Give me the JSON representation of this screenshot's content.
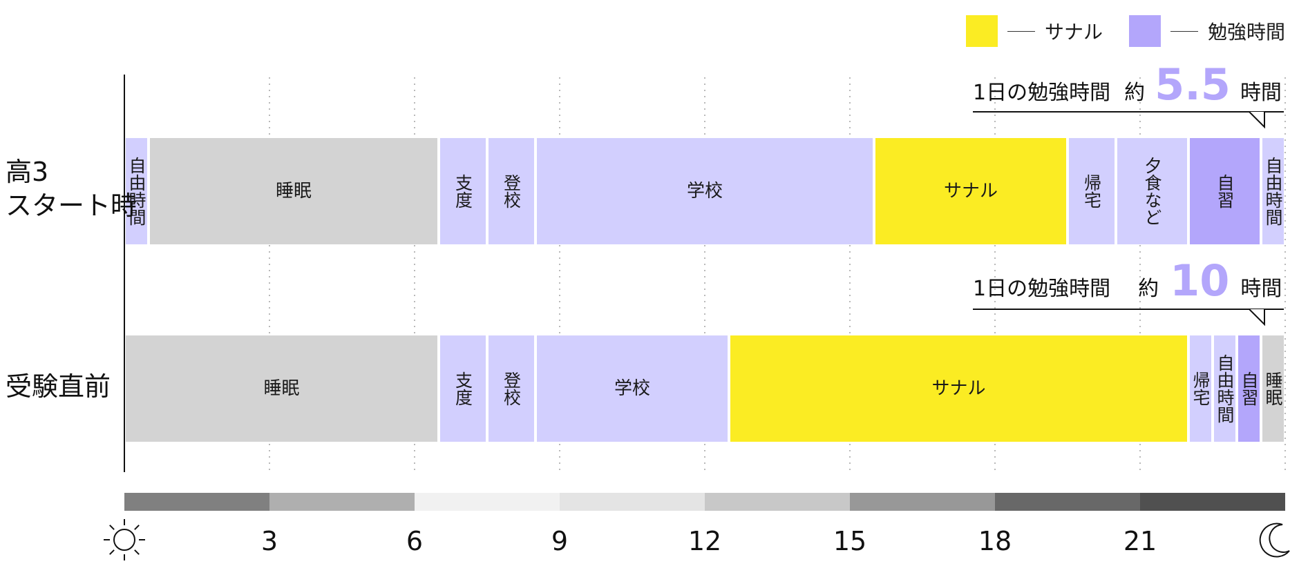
{
  "legend": [
    {
      "label": "サナル",
      "color": "#fbec23"
    },
    {
      "label": "勉強時間",
      "color": "#b3a6fb"
    }
  ],
  "colors": {
    "sleep": "#d3d3d3",
    "activity": "#d2cffe",
    "study": "#b3a6fb",
    "sanaru": "#fbec23"
  },
  "callouts": [
    {
      "prefix": "1日の勉強時間",
      "approx": "約",
      "value": "5.5",
      "suffix": "時間"
    },
    {
      "prefix": "1日の勉強時間",
      "approx": "約",
      "value": "10",
      "suffix": "時間"
    }
  ],
  "chart_data": {
    "type": "bar",
    "orientation": "horizontal-stacked-timeline",
    "x_range": [
      0,
      24
    ],
    "x_ticks": [
      3,
      6,
      9,
      12,
      15,
      18,
      21
    ],
    "x_tick_labels": [
      "3",
      "6",
      "9",
      "12",
      "15",
      "18",
      "21"
    ],
    "x_start_icon": "sun-icon",
    "x_end_icon": "moon-icon",
    "grid": true,
    "legend_position": "top-right",
    "time_band": [
      {
        "start": 0,
        "end": 3,
        "color": "#808080"
      },
      {
        "start": 3,
        "end": 6,
        "color": "#afafaf"
      },
      {
        "start": 6,
        "end": 9,
        "color": "#f1f1f1"
      },
      {
        "start": 9,
        "end": 12,
        "color": "#e4e4e4"
      },
      {
        "start": 12,
        "end": 15,
        "color": "#c8c8c8"
      },
      {
        "start": 15,
        "end": 18,
        "color": "#989898"
      },
      {
        "start": 18,
        "end": 21,
        "color": "#686868"
      },
      {
        "start": 21,
        "end": 24,
        "color": "#505050"
      }
    ],
    "rows": [
      {
        "name": "高3\nスタート時",
        "segments": [
          {
            "label": "自由時間",
            "start": 0,
            "end": 0.5,
            "kind": "activity",
            "vertical": true
          },
          {
            "label": "睡眠",
            "start": 0.5,
            "end": 6.5,
            "kind": "sleep",
            "vertical": false
          },
          {
            "label": "支度",
            "start": 6.5,
            "end": 7.5,
            "kind": "activity",
            "vertical": true
          },
          {
            "label": "登校",
            "start": 7.5,
            "end": 8.5,
            "kind": "activity",
            "vertical": true
          },
          {
            "label": "学校",
            "start": 8.5,
            "end": 15.5,
            "kind": "activity",
            "vertical": false
          },
          {
            "label": "サナル",
            "start": 15.5,
            "end": 19.5,
            "kind": "sanaru",
            "vertical": false
          },
          {
            "label": "帰宅",
            "start": 19.5,
            "end": 20.5,
            "kind": "activity",
            "vertical": true
          },
          {
            "label": "夕食など",
            "start": 20.5,
            "end": 22.0,
            "kind": "activity",
            "vertical": true
          },
          {
            "label": "自習",
            "start": 22.0,
            "end": 23.5,
            "kind": "study",
            "vertical": true
          },
          {
            "label": "自由時間",
            "start": 23.5,
            "end": 24,
            "kind": "activity",
            "vertical": true
          }
        ]
      },
      {
        "name": "受験直前",
        "segments": [
          {
            "label": "睡眠",
            "start": 0,
            "end": 6.5,
            "kind": "sleep",
            "vertical": false
          },
          {
            "label": "支度",
            "start": 6.5,
            "end": 7.5,
            "kind": "activity",
            "vertical": true
          },
          {
            "label": "登校",
            "start": 7.5,
            "end": 8.5,
            "kind": "activity",
            "vertical": true
          },
          {
            "label": "学校",
            "start": 8.5,
            "end": 12.5,
            "kind": "activity",
            "vertical": false
          },
          {
            "label": "サナル",
            "start": 12.5,
            "end": 22.0,
            "kind": "sanaru",
            "vertical": false
          },
          {
            "label": "帰宅",
            "start": 22.0,
            "end": 22.5,
            "kind": "activity",
            "vertical": true
          },
          {
            "label": "自由時間",
            "start": 22.5,
            "end": 23.0,
            "kind": "activity",
            "vertical": true
          },
          {
            "label": "自習",
            "start": 23.0,
            "end": 23.5,
            "kind": "study",
            "vertical": true
          },
          {
            "label": "睡眠",
            "start": 23.5,
            "end": 24,
            "kind": "sleep",
            "vertical": true
          }
        ]
      }
    ]
  }
}
